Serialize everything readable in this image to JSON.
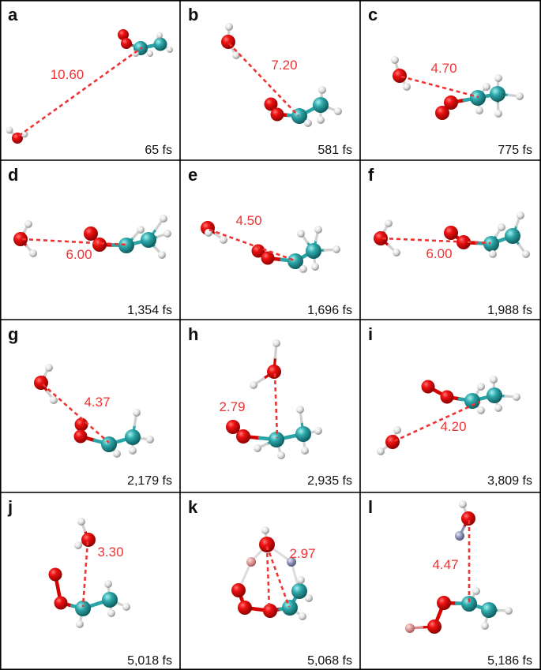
{
  "colors": {
    "oxygen": "#e00000",
    "carbon": "#2aa4a6",
    "hydrogen": "#e8e8e8",
    "hydrogen_pink": "#e29a9a",
    "hydrogen_blue": "#8f95b9",
    "distance": "#ee3333",
    "grid": "#000000"
  },
  "panels": [
    {
      "letter": "a",
      "time": "65 fs",
      "distance": "10.60"
    },
    {
      "letter": "b",
      "time": "581 fs",
      "distance": "7.20"
    },
    {
      "letter": "c",
      "time": "775 fs",
      "distance": "4.70"
    },
    {
      "letter": "d",
      "time": "1,354 fs",
      "distance": "6.00"
    },
    {
      "letter": "e",
      "time": "1,696 fs",
      "distance": "4.50"
    },
    {
      "letter": "f",
      "time": "1,988 fs",
      "distance": "6.00"
    },
    {
      "letter": "g",
      "time": "2,179 fs",
      "distance": "4.37"
    },
    {
      "letter": "h",
      "time": "2,935 fs",
      "distance": "2.79"
    },
    {
      "letter": "i",
      "time": "3,809 fs",
      "distance": "4.20"
    },
    {
      "letter": "j",
      "time": "5,018 fs",
      "distance": "3.30"
    },
    {
      "letter": "k",
      "time": "5,068 fs",
      "distance": "2.97"
    },
    {
      "letter": "l",
      "time": "5,186 fs",
      "distance": "4.47"
    }
  ]
}
